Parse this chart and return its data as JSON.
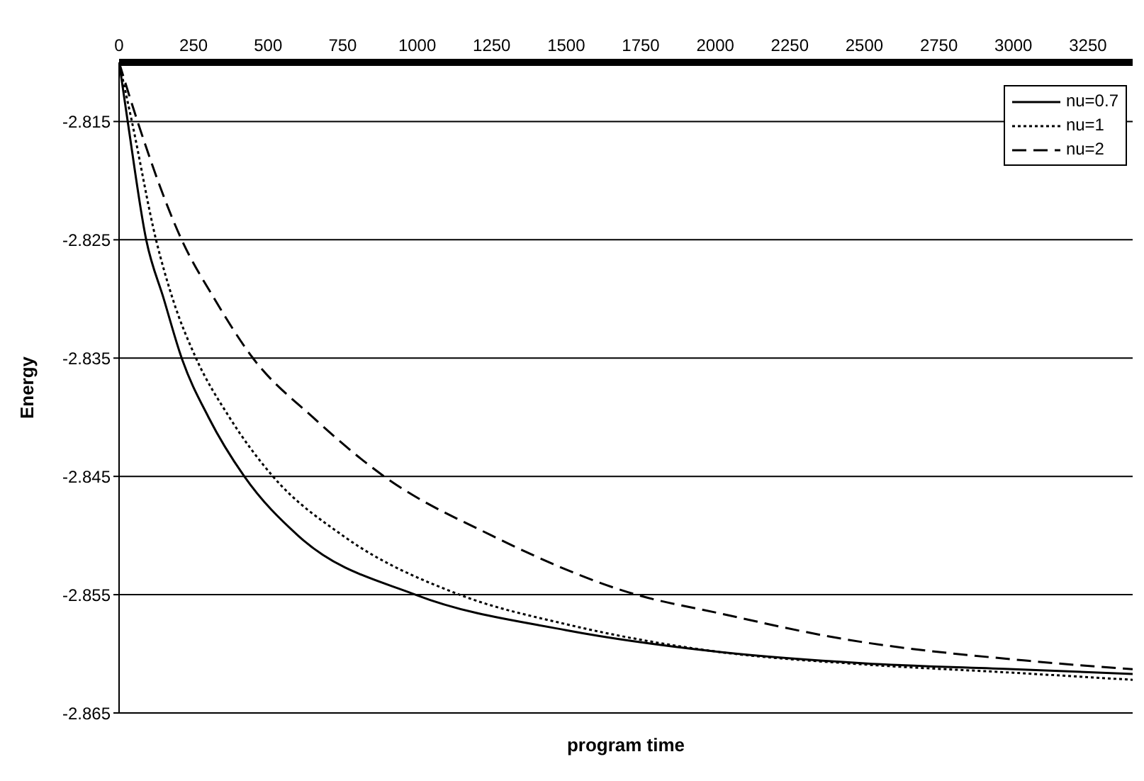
{
  "chart_data": {
    "type": "line",
    "xlabel": "program time",
    "ylabel": "Energy",
    "xlim": [
      0,
      3400
    ],
    "xticks": [
      0,
      250,
      500,
      750,
      1000,
      1250,
      1500,
      1750,
      2000,
      2250,
      2500,
      2750,
      3000,
      3250
    ],
    "ylim": [
      -2.865,
      -2.81
    ],
    "yticks": [
      -2.865,
      -2.855,
      -2.845,
      -2.835,
      -2.825,
      -2.815
    ],
    "grid": "y",
    "legend": "top right",
    "marker": "none",
    "series": [
      {
        "name": "nu=0.7",
        "color": "#000000",
        "line_style": "solid",
        "x": [
          0,
          29,
          91,
          150,
          210,
          300,
          420,
          600,
          994,
          1500,
          2000,
          2500,
          3000,
          3400
        ],
        "values": [
          -2.81,
          -2.815,
          -2.825,
          -2.83,
          -2.835,
          -2.84,
          -2.845,
          -2.85,
          -2.855,
          -2.858,
          -2.8598,
          -2.8608,
          -2.8613,
          -2.8617
        ]
      },
      {
        "name": "nu=1",
        "color": "#000000",
        "line_style": "dotted",
        "x": [
          0,
          43,
          124,
          180,
          258,
          370,
          516,
          750,
          1142,
          1500,
          2000,
          2500,
          3000,
          3400
        ],
        "values": [
          -2.81,
          -2.815,
          -2.825,
          -2.83,
          -2.835,
          -2.84,
          -2.845,
          -2.85,
          -2.855,
          -2.8575,
          -2.8598,
          -2.8609,
          -2.8616,
          -2.8622
        ]
      },
      {
        "name": "nu=2",
        "color": "#000000",
        "line_style": "dashed",
        "x": [
          0,
          62,
          210,
          320,
          449,
          650,
          889,
          1250,
          1735,
          2000,
          2419,
          3054,
          3400
        ],
        "values": [
          -2.81,
          -2.815,
          -2.825,
          -2.83,
          -2.835,
          -2.84,
          -2.845,
          -2.85,
          -2.855,
          -2.8565,
          -2.8587,
          -2.8606,
          -2.8613
        ]
      }
    ]
  }
}
